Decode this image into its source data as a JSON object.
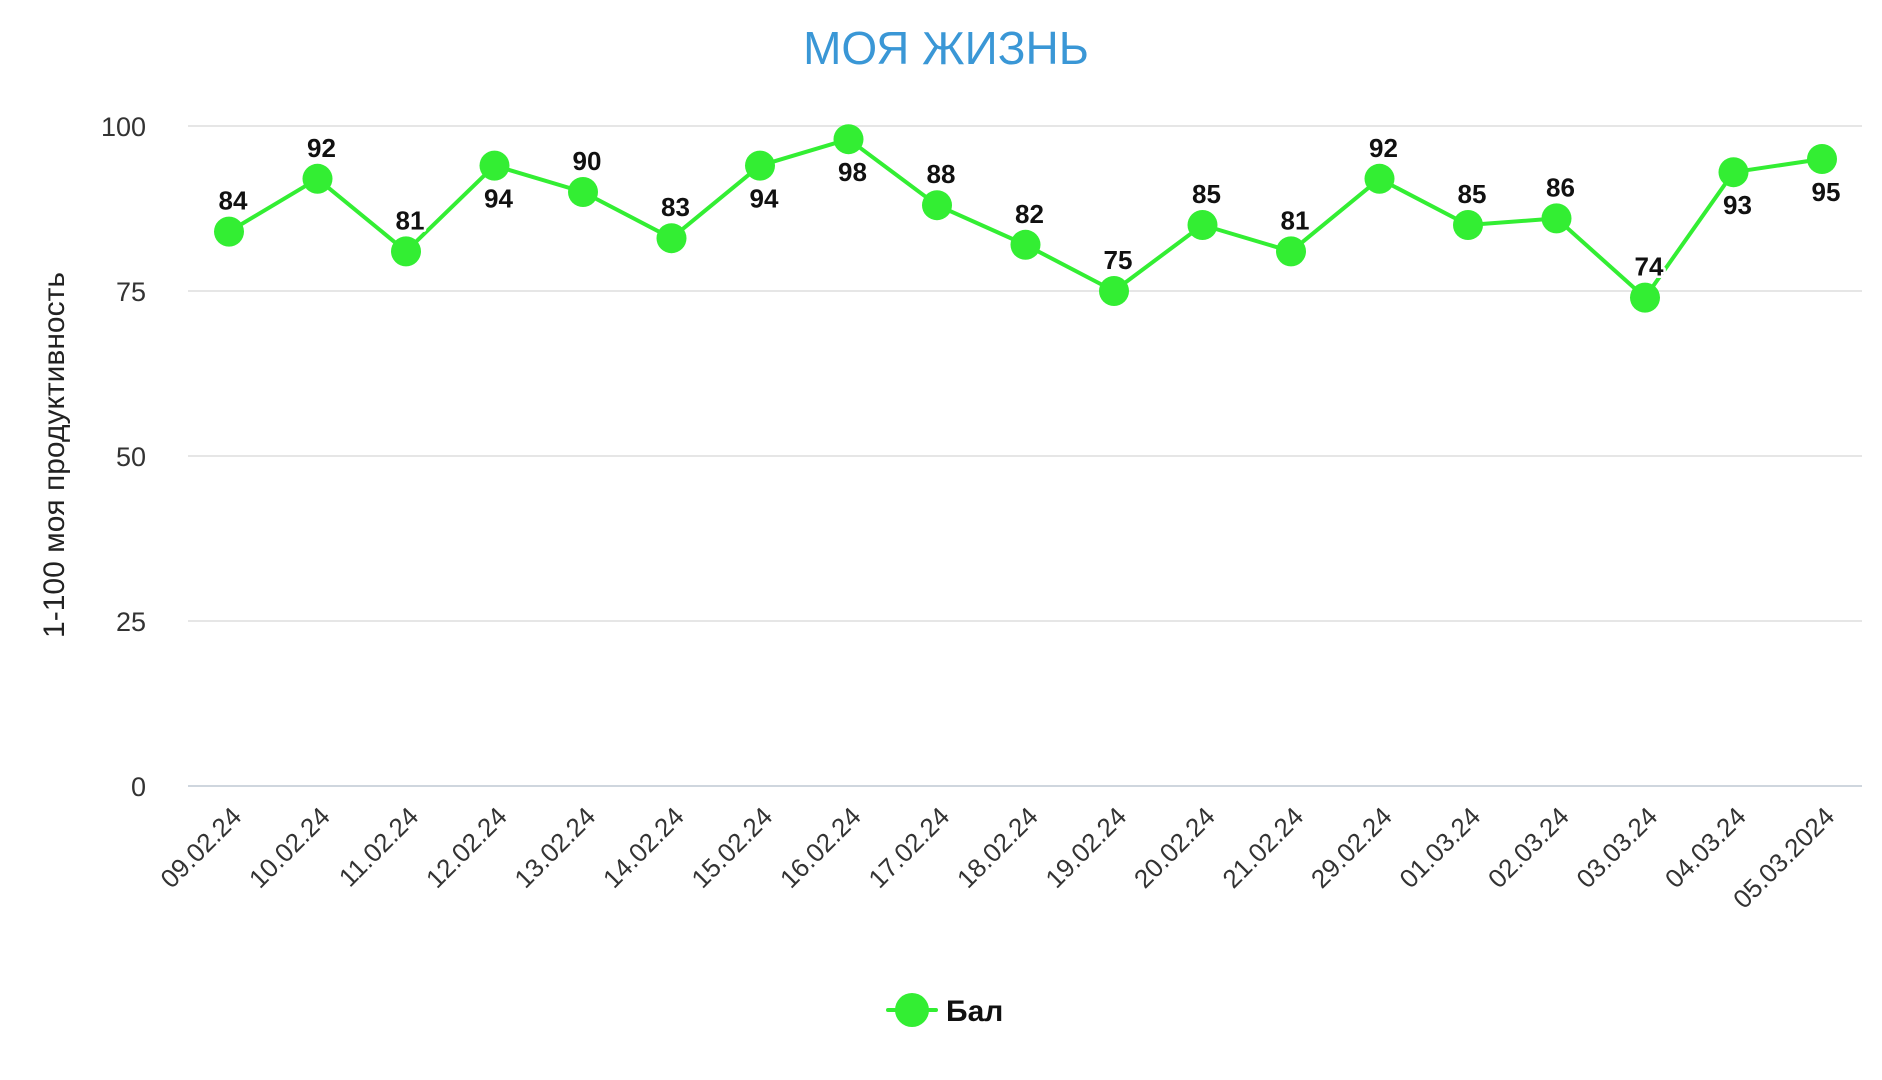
{
  "chart_data": {
    "type": "line",
    "title": "МОЯ ЖИЗНЬ",
    "xlabel": "",
    "ylabel": "1-100 моя продуктивность",
    "ylim": [
      0,
      100
    ],
    "yticks": [
      0,
      25,
      50,
      75,
      100
    ],
    "grid": true,
    "legend_position": "bottom",
    "categories": [
      "09.02.24",
      "10.02.24",
      "11.02.24",
      "12.02.24",
      "13.02.24",
      "14.02.24",
      "15.02.24",
      "16.02.24",
      "17.02.24",
      "18.02.24",
      "19.02.24",
      "20.02.24",
      "21.02.24",
      "29.02.24",
      "01.03.24",
      "02.03.24",
      "03.03.24",
      "04.03.24",
      "05.03.2024"
    ],
    "series": [
      {
        "name": "Бал",
        "color": "#33ee33",
        "values": [
          84,
          92,
          81,
          94,
          90,
          83,
          94,
          98,
          88,
          82,
          75,
          85,
          81,
          92,
          85,
          86,
          74,
          93,
          95
        ],
        "label_positions": [
          "above",
          "above",
          "above",
          "below",
          "above",
          "above",
          "below",
          "below",
          "above",
          "above",
          "above",
          "above",
          "above",
          "above",
          "above",
          "above",
          "above",
          "below",
          "below"
        ]
      }
    ]
  }
}
